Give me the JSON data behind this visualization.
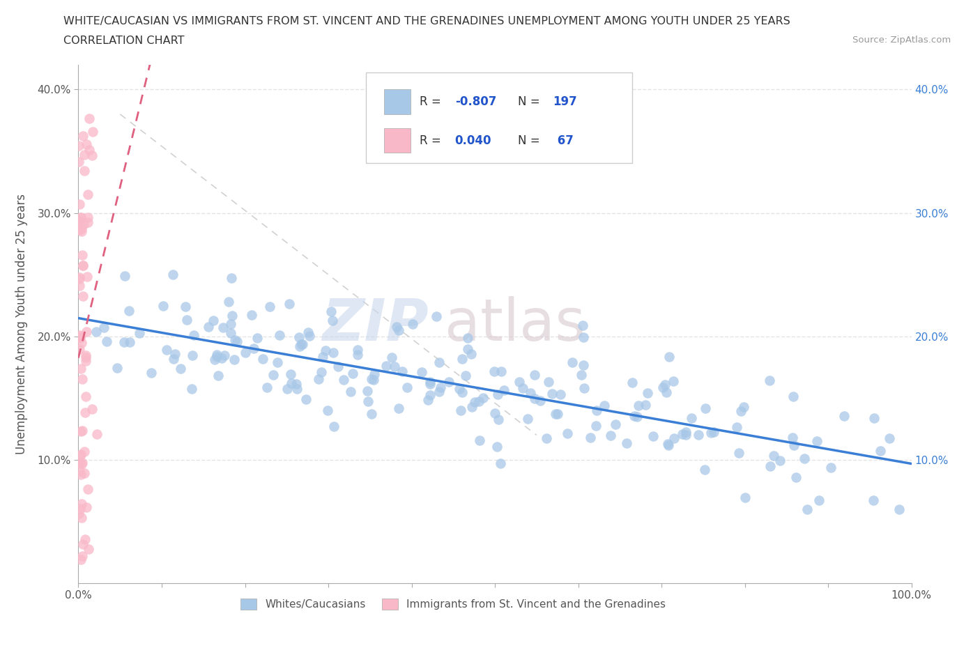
{
  "title_line1": "WHITE/CAUCASIAN VS IMMIGRANTS FROM ST. VINCENT AND THE GRENADINES UNEMPLOYMENT AMONG YOUTH UNDER 25 YEARS",
  "title_line2": "CORRELATION CHART",
  "source": "Source: ZipAtlas.com",
  "ylabel": "Unemployment Among Youth under 25 years",
  "watermark_zip": "ZIP",
  "watermark_atlas": "atlas",
  "legend_items": [
    {
      "label": "Whites/Caucasians",
      "R_str": "-0.807",
      "N_str": "197",
      "color": "#a8c8e8",
      "line_color": "#3a7fd5"
    },
    {
      "label": "Immigrants from St. Vincent and the Grenadines",
      "R_str": "0.040",
      "N_str": " 67",
      "color": "#f9b8c8",
      "line_color": "#e06080"
    }
  ],
  "xmin": 0.0,
  "xmax": 1.0,
  "ymin": 0.0,
  "ymax": 0.42,
  "yticks": [
    0.1,
    0.2,
    0.3,
    0.4
  ],
  "ytick_labels": [
    "10.0%",
    "20.0%",
    "30.0%",
    "40.0%"
  ],
  "xticks": [
    0.0,
    0.1,
    0.2,
    0.3,
    0.4,
    0.5,
    0.6,
    0.7,
    0.8,
    0.9,
    1.0
  ],
  "xtick_labels": [
    "0.0%",
    "",
    "",
    "",
    "",
    "",
    "",
    "",
    "",
    "",
    "100.0%"
  ],
  "background_color": "#ffffff",
  "grid_color": "#dddddd",
  "title_color": "#333333",
  "R_color": "#2255cc",
  "gray_dash_color": "#cccccc",
  "source_color": "#999999"
}
